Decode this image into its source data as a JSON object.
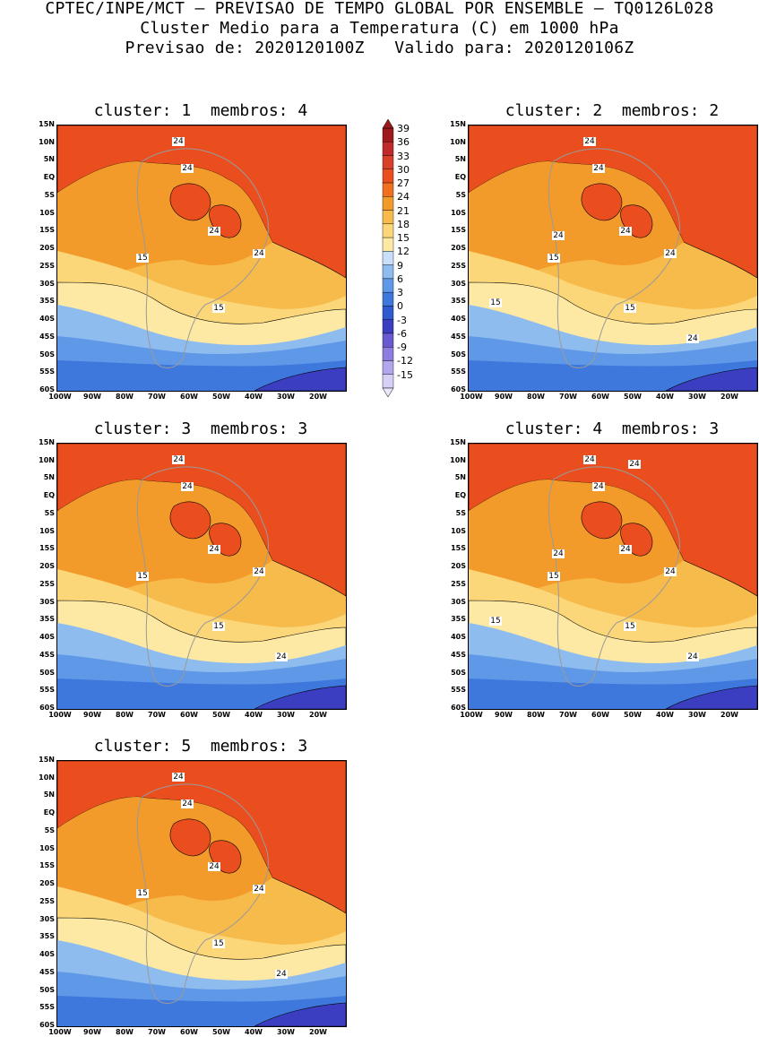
{
  "header": {
    "line1": "CPTEC/INPE/MCT — PREVISAO DE TEMPO GLOBAL POR ENSEMBLE — TQ0126L028",
    "line2": "Cluster Medio para a Temperatura (C) em 1000 hPa",
    "line3": "Previsao de: 2020120100Z   Valido para: 2020120106Z"
  },
  "panels": [
    {
      "title": "cluster: 1  membros: 4",
      "labels15": [
        "15",
        "15"
      ],
      "labels24": [
        "24",
        "24",
        "24",
        "24"
      ]
    },
    {
      "title": "cluster: 2  membros: 2",
      "labels15": [
        "15",
        "15",
        "15"
      ],
      "labels24": [
        "24",
        "24",
        "24",
        "24",
        "24",
        "24"
      ]
    },
    {
      "title": "cluster: 3  membros: 3",
      "labels15": [
        "15",
        "15"
      ],
      "labels24": [
        "24",
        "24",
        "24",
        "24",
        "24"
      ]
    },
    {
      "title": "cluster: 4  membros: 3",
      "labels15": [
        "15",
        "15",
        "15"
      ],
      "labels24": [
        "24",
        "24",
        "24",
        "24",
        "24",
        "24",
        "24"
      ]
    },
    {
      "title": "cluster: 5  membros: 3",
      "labels15": [
        "15",
        "15"
      ],
      "labels24": [
        "24",
        "24",
        "24",
        "24",
        "24"
      ]
    }
  ],
  "y_ticks": [
    "15N",
    "10N",
    "5N",
    "EQ",
    "5S",
    "10S",
    "15S",
    "20S",
    "25S",
    "30S",
    "35S",
    "40S",
    "45S",
    "50S",
    "55S",
    "60S"
  ],
  "x_ticks": [
    "100W",
    "90W",
    "80W",
    "70W",
    "60W",
    "50W",
    "40W",
    "30W",
    "20W"
  ],
  "colorbar": {
    "labels": [
      "39",
      "36",
      "33",
      "30",
      "27",
      "24",
      "21",
      "18",
      "15",
      "12",
      "9",
      "6",
      "3",
      "0",
      "-3",
      "-6",
      "-9",
      "-12",
      "-15"
    ],
    "colors": [
      "#9e1a1a",
      "#c02a2a",
      "#d8402a",
      "#ea4e1e",
      "#f07020",
      "#f39b2a",
      "#f7bb4c",
      "#fbd779",
      "#fde9a3",
      "#c8defb",
      "#8fbcef",
      "#5f98e6",
      "#3f78dc",
      "#2f5ad0",
      "#3b3ec0",
      "#6a5ad0",
      "#8d7de0",
      "#b3a6ec",
      "#d7cff5"
    ]
  }
}
